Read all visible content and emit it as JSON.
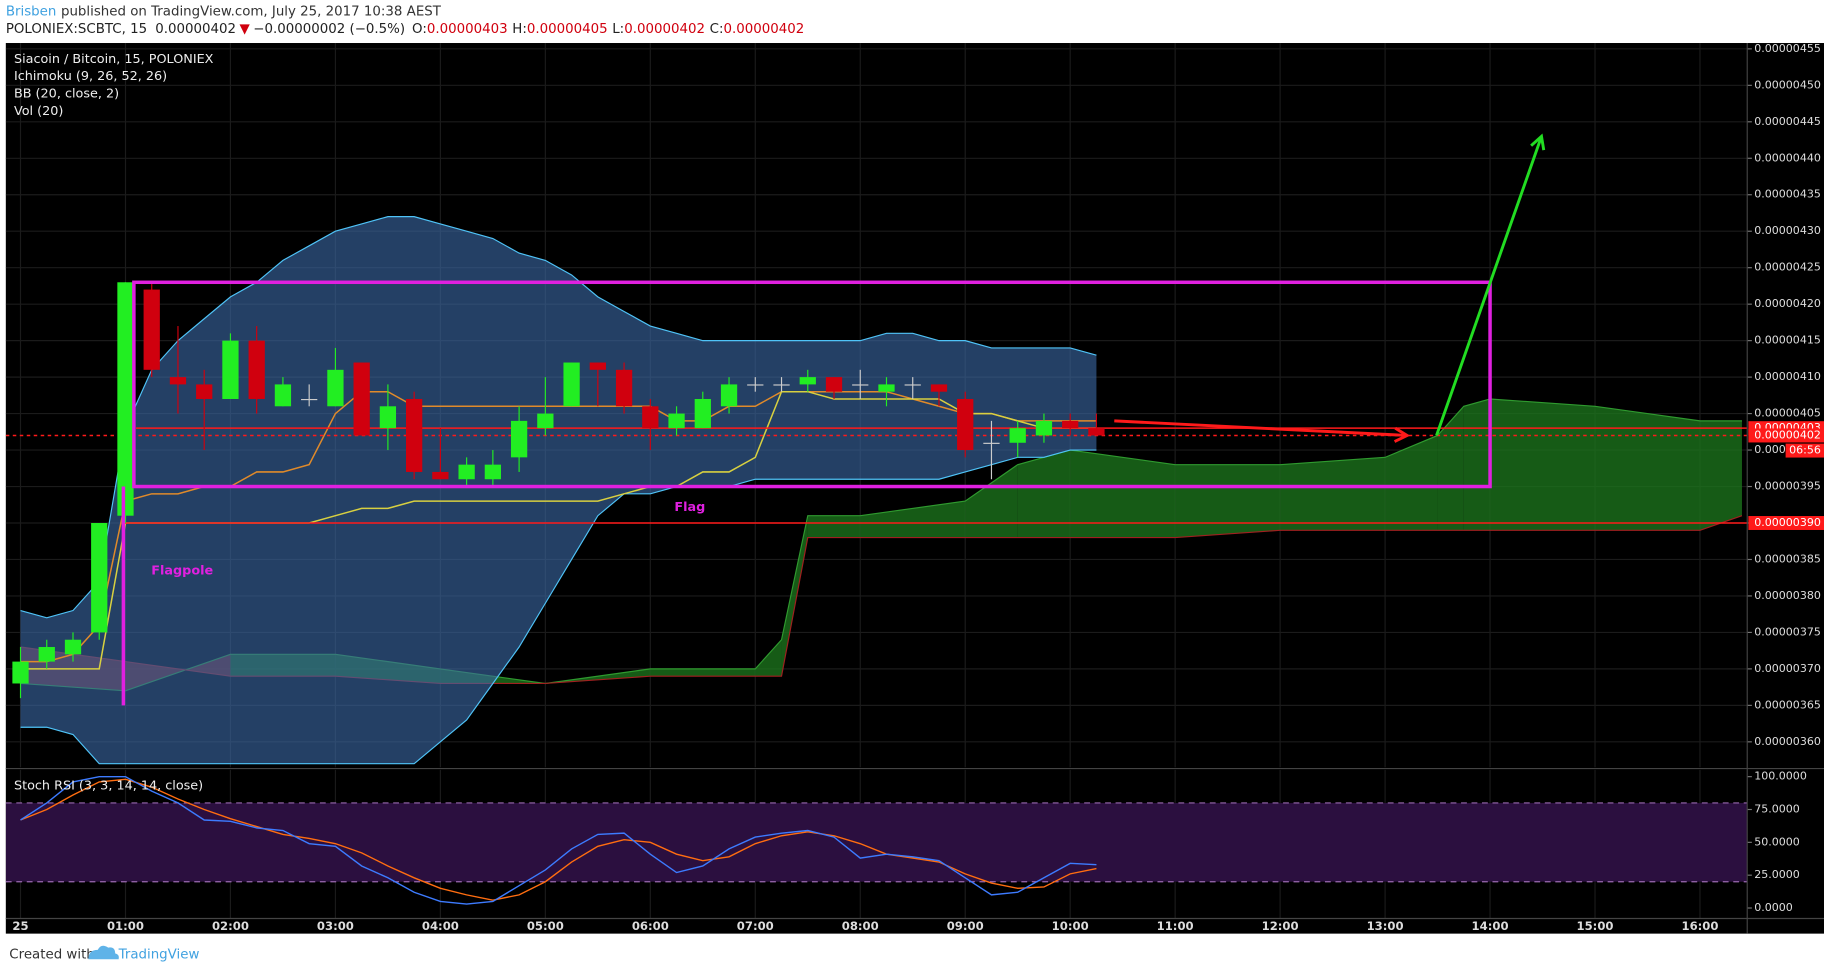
{
  "header": {
    "author": "Brisben",
    "published": "published on TradingView.com, July 25, 2017 10:38 AEST",
    "symbol": "POLONIEX:SCBTC, 15",
    "last": "0.00000402",
    "arrow": "▼",
    "change": "−0.00000002 (−0.5%)",
    "ohlc": [
      {
        "key": "O:",
        "value": "0.00000403"
      },
      {
        "key": "H:",
        "value": "0.00000405"
      },
      {
        "key": "L:",
        "value": "0.00000402"
      },
      {
        "key": "C:",
        "value": "0.00000402"
      }
    ]
  },
  "footer": {
    "created": "Created with",
    "brand": "TradingView"
  },
  "chart_data": [
    {
      "type": "candlestick",
      "title": "Siacoin / Bitcoin, 15, POLONIEX",
      "indicators": [
        "Ichimoku (9, 26, 52, 26)",
        "BB (20, close, 2)",
        "Vol (20)"
      ],
      "xlim": [
        -0.14,
        16.45
      ],
      "ylim": [
        3.565e-06,
        4.558e-06
      ],
      "grid": true,
      "up_color": "#22ee22",
      "down_color": "#d0000e",
      "xticks": [
        {
          "value": 0,
          "label": "25"
        },
        {
          "value": 1,
          "label": "01:00"
        },
        {
          "value": 2,
          "label": "02:00"
        },
        {
          "value": 3,
          "label": "03:00"
        },
        {
          "value": 4,
          "label": "04:00"
        },
        {
          "value": 5,
          "label": "05:00"
        },
        {
          "value": 6,
          "label": "06:00"
        },
        {
          "value": 7,
          "label": "07:00"
        },
        {
          "value": 8,
          "label": "08:00"
        },
        {
          "value": 9,
          "label": "09:00"
        },
        {
          "value": 10,
          "label": "10:00"
        },
        {
          "value": 11,
          "label": "11:00"
        },
        {
          "value": 12,
          "label": "12:00"
        },
        {
          "value": 13,
          "label": "13:00"
        },
        {
          "value": 14,
          "label": "14:00"
        },
        {
          "value": 15,
          "label": "15:00"
        },
        {
          "value": 16,
          "label": "16:00"
        }
      ],
      "yticks": [
        {
          "value": 4.55e-06,
          "label": "0.00000455"
        },
        {
          "value": 4.5e-06,
          "label": "0.00000450"
        },
        {
          "value": 4.45e-06,
          "label": "0.00000445"
        },
        {
          "value": 4.4e-06,
          "label": "0.00000440"
        },
        {
          "value": 4.35e-06,
          "label": "0.00000435"
        },
        {
          "value": 4.3e-06,
          "label": "0.00000430"
        },
        {
          "value": 4.25e-06,
          "label": "0.00000425"
        },
        {
          "value": 4.2e-06,
          "label": "0.00000420"
        },
        {
          "value": 4.15e-06,
          "label": "0.00000415"
        },
        {
          "value": 4.1e-06,
          "label": "0.00000410"
        },
        {
          "value": 4.05e-06,
          "label": "0.00000405"
        },
        {
          "value": 4e-06,
          "label": "0.00000400"
        },
        {
          "value": 3.95e-06,
          "label": "0.00000395"
        },
        {
          "value": 3.9e-06,
          "label": "0.00000390"
        },
        {
          "value": 3.85e-06,
          "label": "0.00000385"
        },
        {
          "value": 3.8e-06,
          "label": "0.00000380"
        },
        {
          "value": 3.75e-06,
          "label": "0.00000375"
        },
        {
          "value": 3.7e-06,
          "label": "0.00000370"
        },
        {
          "value": 3.65e-06,
          "label": "0.00000365"
        },
        {
          "value": 3.6e-06,
          "label": "0.00000360"
        }
      ],
      "x": [
        0,
        0.25,
        0.5,
        0.75,
        1,
        1.25,
        1.5,
        1.75,
        2,
        2.25,
        2.5,
        2.75,
        3,
        3.25,
        3.5,
        3.75,
        4,
        4.25,
        4.5,
        4.75,
        5,
        5.25,
        5.5,
        5.75,
        6,
        6.25,
        6.5,
        6.75,
        7,
        7.25,
        7.5,
        7.75,
        8,
        8.25,
        8.5,
        8.75,
        9,
        9.25,
        9.5,
        9.75,
        10,
        10.25
      ],
      "open": [
        3.68e-06,
        3.71e-06,
        3.72e-06,
        3.75e-06,
        3.91e-06,
        4.22e-06,
        4.1e-06,
        4.09e-06,
        4.07e-06,
        4.15e-06,
        4.06e-06,
        4.07e-06,
        4.06e-06,
        4.12e-06,
        4.03e-06,
        4.07e-06,
        3.97e-06,
        3.96e-06,
        3.96e-06,
        3.99e-06,
        4.03e-06,
        4.06e-06,
        4.12e-06,
        4.11e-06,
        4.06e-06,
        4.03e-06,
        4.03e-06,
        4.06e-06,
        4.09e-06,
        4.09e-06,
        4.09e-06,
        4.1e-06,
        4.09e-06,
        4.08e-06,
        4.09e-06,
        4.09e-06,
        4.07e-06,
        4.01e-06,
        4.01e-06,
        4.02e-06,
        4.04e-06,
        4.03e-06
      ],
      "high": [
        3.73e-06,
        3.74e-06,
        3.75e-06,
        3.9e-06,
        4.23e-06,
        4.23e-06,
        4.17e-06,
        4.11e-06,
        4.16e-06,
        4.17e-06,
        4.1e-06,
        4.09e-06,
        4.14e-06,
        4.12e-06,
        4.09e-06,
        4.08e-06,
        4.03e-06,
        3.99e-06,
        4e-06,
        4.06e-06,
        4.1e-06,
        4.12e-06,
        4.12e-06,
        4.12e-06,
        4.07e-06,
        4.06e-06,
        4.08e-06,
        4.1e-06,
        4.1e-06,
        4.1e-06,
        4.11e-06,
        4.1e-06,
        4.11e-06,
        4.1e-06,
        4.1e-06,
        4.09e-06,
        4.08e-06,
        4.04e-06,
        4.04e-06,
        4.05e-06,
        4.05e-06,
        4.05e-06
      ],
      "low": [
        3.66e-06,
        3.7e-06,
        3.71e-06,
        3.74e-06,
        3.9e-06,
        4.1e-06,
        4.05e-06,
        4e-06,
        4.07e-06,
        4.05e-06,
        4.06e-06,
        4.06e-06,
        4.06e-06,
        4.02e-06,
        4e-06,
        3.96e-06,
        3.96e-06,
        3.95e-06,
        3.95e-06,
        3.97e-06,
        4.02e-06,
        4.06e-06,
        4.06e-06,
        4.05e-06,
        4e-06,
        4.02e-06,
        4.03e-06,
        4.05e-06,
        4.08e-06,
        4.08e-06,
        4.08e-06,
        4.07e-06,
        4.07e-06,
        4.06e-06,
        4.07e-06,
        4.06e-06,
        3.99e-06,
        3.96e-06,
        3.99e-06,
        4.01e-06,
        4.02e-06,
        4.02e-06
      ],
      "close": [
        3.71e-06,
        3.73e-06,
        3.74e-06,
        3.9e-06,
        4.23e-06,
        4.11e-06,
        4.09e-06,
        4.07e-06,
        4.15e-06,
        4.07e-06,
        4.09e-06,
        4.07e-06,
        4.11e-06,
        4.02e-06,
        4.06e-06,
        3.97e-06,
        3.96e-06,
        3.98e-06,
        3.98e-06,
        4.04e-06,
        4.05e-06,
        4.12e-06,
        4.11e-06,
        4.06e-06,
        4.03e-06,
        4.05e-06,
        4.07e-06,
        4.09e-06,
        4.09e-06,
        4.09e-06,
        4.1e-06,
        4.08e-06,
        4.09e-06,
        4.09e-06,
        4.09e-06,
        4.08e-06,
        4e-06,
        4.01e-06,
        4.03e-06,
        4.04e-06,
        4.03e-06,
        4.02e-06
      ],
      "bb_upper": {
        "color": "#4fc3f7",
        "values": [
          3.78e-06,
          3.77e-06,
          3.78e-06,
          3.82e-06,
          4.03e-06,
          4.11e-06,
          4.15e-06,
          4.18e-06,
          4.21e-06,
          4.23e-06,
          4.26e-06,
          4.28e-06,
          4.3e-06,
          4.31e-06,
          4.32e-06,
          4.32e-06,
          4.31e-06,
          4.3e-06,
          4.29e-06,
          4.27e-06,
          4.26e-06,
          4.24e-06,
          4.21e-06,
          4.19e-06,
          4.17e-06,
          4.16e-06,
          4.15e-06,
          4.15e-06,
          4.15e-06,
          4.15e-06,
          4.15e-06,
          4.15e-06,
          4.15e-06,
          4.16e-06,
          4.16e-06,
          4.15e-06,
          4.15e-06,
          4.14e-06,
          4.14e-06,
          4.14e-06,
          4.14e-06,
          4.13e-06
        ]
      },
      "bb_lower": {
        "color": "#4fc3f7",
        "values": [
          3.62e-06,
          3.62e-06,
          3.61e-06,
          3.57e-06,
          3.57e-06,
          3.57e-06,
          3.57e-06,
          3.57e-06,
          3.57e-06,
          3.57e-06,
          3.57e-06,
          3.57e-06,
          3.57e-06,
          3.57e-06,
          3.57e-06,
          3.57e-06,
          3.6e-06,
          3.63e-06,
          3.68e-06,
          3.73e-06,
          3.79e-06,
          3.85e-06,
          3.91e-06,
          3.94e-06,
          3.94e-06,
          3.95e-06,
          3.95e-06,
          3.95e-06,
          3.96e-06,
          3.96e-06,
          3.96e-06,
          3.96e-06,
          3.96e-06,
          3.96e-06,
          3.96e-06,
          3.96e-06,
          3.97e-06,
          3.98e-06,
          3.99e-06,
          3.99e-06,
          4e-06,
          4e-06
        ]
      },
      "bb_fill": "#3c6aa8",
      "tenkan": {
        "color": "#e08a2a",
        "values": [
          3.71e-06,
          3.71e-06,
          3.72e-06,
          3.76e-06,
          3.93e-06,
          3.94e-06,
          3.94e-06,
          3.95e-06,
          3.95e-06,
          3.97e-06,
          3.97e-06,
          3.98e-06,
          4.05e-06,
          4.08e-06,
          4.08e-06,
          4.06e-06,
          4.06e-06,
          4.06e-06,
          4.06e-06,
          4.06e-06,
          4.06e-06,
          4.06e-06,
          4.06e-06,
          4.06e-06,
          4.06e-06,
          4.04e-06,
          4.04e-06,
          4.06e-06,
          4.06e-06,
          4.08e-06,
          4.08e-06,
          4.08e-06,
          4.08e-06,
          4.08e-06,
          4.07e-06,
          4.06e-06,
          4.05e-06,
          4.05e-06,
          4.04e-06,
          4.04e-06,
          4.04e-06,
          4.04e-06
        ]
      },
      "kijun": {
        "color": "#d8d040",
        "values": [
          3.7e-06,
          3.7e-06,
          3.7e-06,
          3.7e-06,
          3.9e-06,
          3.9e-06,
          3.9e-06,
          3.9e-06,
          3.9e-06,
          3.9e-06,
          3.9e-06,
          3.9e-06,
          3.91e-06,
          3.92e-06,
          3.92e-06,
          3.93e-06,
          3.93e-06,
          3.93e-06,
          3.93e-06,
          3.93e-06,
          3.93e-06,
          3.93e-06,
          3.93e-06,
          3.94e-06,
          3.95e-06,
          3.95e-06,
          3.97e-06,
          3.97e-06,
          3.99e-06,
          4.08e-06,
          4.08e-06,
          4.07e-06,
          4.07e-06,
          4.07e-06,
          4.07e-06,
          4.07e-06,
          4.05e-06,
          4.05e-06,
          4.04e-06,
          4.03e-06,
          4.03e-06,
          4.03e-06
        ]
      },
      "cloud": {
        "x": [
          0,
          1,
          2,
          3,
          4,
          5,
          6,
          7,
          7.25,
          7.5,
          8,
          9,
          9.5,
          10,
          11,
          12,
          13,
          13.5,
          13.75,
          14,
          15,
          16,
          16.4
        ],
        "span_a": [
          3.68e-06,
          3.67e-06,
          3.72e-06,
          3.72e-06,
          3.7e-06,
          3.68e-06,
          3.7e-06,
          3.7e-06,
          3.74e-06,
          3.91e-06,
          3.91e-06,
          3.93e-06,
          3.98e-06,
          4e-06,
          3.98e-06,
          3.98e-06,
          3.99e-06,
          4.02e-06,
          4.06e-06,
          4.07e-06,
          4.06e-06,
          4.04e-06,
          4.04e-06
        ],
        "span_b": [
          3.73e-06,
          3.71e-06,
          3.69e-06,
          3.69e-06,
          3.68e-06,
          3.68e-06,
          3.69e-06,
          3.69e-06,
          3.69e-06,
          3.88e-06,
          3.88e-06,
          3.88e-06,
          3.88e-06,
          3.88e-06,
          3.88e-06,
          3.89e-06,
          3.89e-06,
          3.89e-06,
          3.89e-06,
          3.89e-06,
          3.89e-06,
          3.89e-06,
          3.91e-06
        ],
        "up_color": "#1e7a1e",
        "down_color": "#8a2a2a",
        "line_a": "#2f9a2f",
        "line_b": "#a02020"
      },
      "levels": [
        {
          "value": 4.03e-06,
          "label": "0.00000403",
          "color": "#ff1a1a",
          "dashed": false,
          "from": 1.1
        },
        {
          "value": 4.02e-06,
          "label": "0.00000402",
          "color": "#ff1a1a",
          "dashed": true,
          "from": -0.14
        },
        {
          "value": 3.9e-06,
          "label": "0.00000390",
          "color": "#ff1a1a",
          "dashed": false,
          "from": 0.98
        }
      ],
      "countdown": "06:56",
      "flag": {
        "label": "Flag",
        "color": "#e020e0",
        "x": [
          1.08,
          14
        ],
        "price": [
          3.95e-06,
          4.23e-06
        ]
      },
      "flagpole": {
        "label": "Flagpole",
        "color": "#e020e0",
        "x": 0.98,
        "price": [
          3.65e-06,
          3.95e-06
        ]
      },
      "arrows": [
        {
          "color": "#ff1a1a",
          "x": [
            10.42,
            13.21
          ],
          "price": [
            4.04e-06,
            4.02e-06
          ]
        },
        {
          "color": "#22dd22",
          "x": [
            13.49,
            14.49
          ],
          "price": [
            4.02e-06,
            4.43e-06
          ]
        }
      ]
    },
    {
      "type": "line",
      "title": "Stoch RSI (3, 3, 14, 14, close)",
      "ylim": [
        -8,
        105.3
      ],
      "yticks": [
        {
          "value": 100,
          "label": "100.0000"
        },
        {
          "value": 75,
          "label": "75.0000"
        },
        {
          "value": 50,
          "label": "50.0000"
        },
        {
          "value": 25,
          "label": "25.0000"
        },
        {
          "value": 0,
          "label": "0.0000"
        }
      ],
      "band": [
        20,
        80
      ],
      "band_color": "#2b0f3f",
      "band_line": "#9a6ab0",
      "k": {
        "color": "#3d7bff",
        "values": [
          67,
          80,
          96,
          100,
          100,
          89,
          80,
          67,
          66,
          61,
          59,
          49,
          47,
          32,
          23,
          12,
          5,
          3,
          5,
          17,
          29,
          45,
          56,
          57,
          41,
          27,
          32,
          45,
          54,
          57,
          59,
          54,
          38,
          41,
          39,
          36,
          23,
          10,
          12,
          23,
          34,
          33
        ]
      },
      "d": {
        "color": "#ff6d10",
        "values": [
          67,
          75,
          86,
          96,
          98,
          92,
          83,
          75,
          68,
          62,
          56,
          53,
          49,
          42,
          32,
          23,
          15,
          10,
          6,
          10,
          20,
          35,
          47,
          52,
          50,
          41,
          36,
          39,
          49,
          55,
          58,
          55,
          49,
          41,
          38,
          35,
          26,
          19,
          15,
          16,
          26,
          30
        ]
      }
    }
  ]
}
